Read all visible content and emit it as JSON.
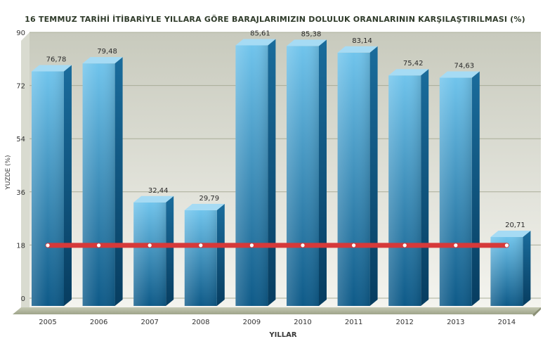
{
  "chart_data": {
    "type": "bar",
    "title": "16 TEMMUZ TARİHİ İTİBARİYLE YILLARA GÖRE BARAJLARIMIZIN DOLULUK ORANLARININ KARŞILAŞTIRILMASI (%)",
    "xlabel": "YILLAR",
    "ylabel": "YUZDE (%)",
    "categories": [
      "2005",
      "2006",
      "2007",
      "2008",
      "2009",
      "2010",
      "2011",
      "2012",
      "2013",
      "2014"
    ],
    "values": [
      76.78,
      79.48,
      32.44,
      29.79,
      85.61,
      85.38,
      83.14,
      75.42,
      74.63,
      20.71
    ],
    "value_labels": [
      "76,78",
      "79,48",
      "32,44",
      "29,79",
      "85,61",
      "85,38",
      "83,14",
      "75,42",
      "74,63",
      "20,71"
    ],
    "ylim": [
      0,
      90
    ],
    "yticks": [
      0,
      18,
      36,
      54,
      72,
      90
    ],
    "grid": true,
    "line_series": {
      "values": [
        18,
        18,
        18,
        18,
        18,
        18,
        18,
        18,
        18,
        18
      ],
      "color": "#d6393a"
    },
    "colors": {
      "bar_front_top": "#6ec2ea",
      "bar_front_bottom": "#0f5e8c",
      "bar_side": "#0d4f78",
      "bar_top": "#9fd8f3",
      "plot_bg_top": "#c9cbbf",
      "plot_bg_bottom": "#f3f3ee",
      "floor": "#b7bba5"
    }
  }
}
